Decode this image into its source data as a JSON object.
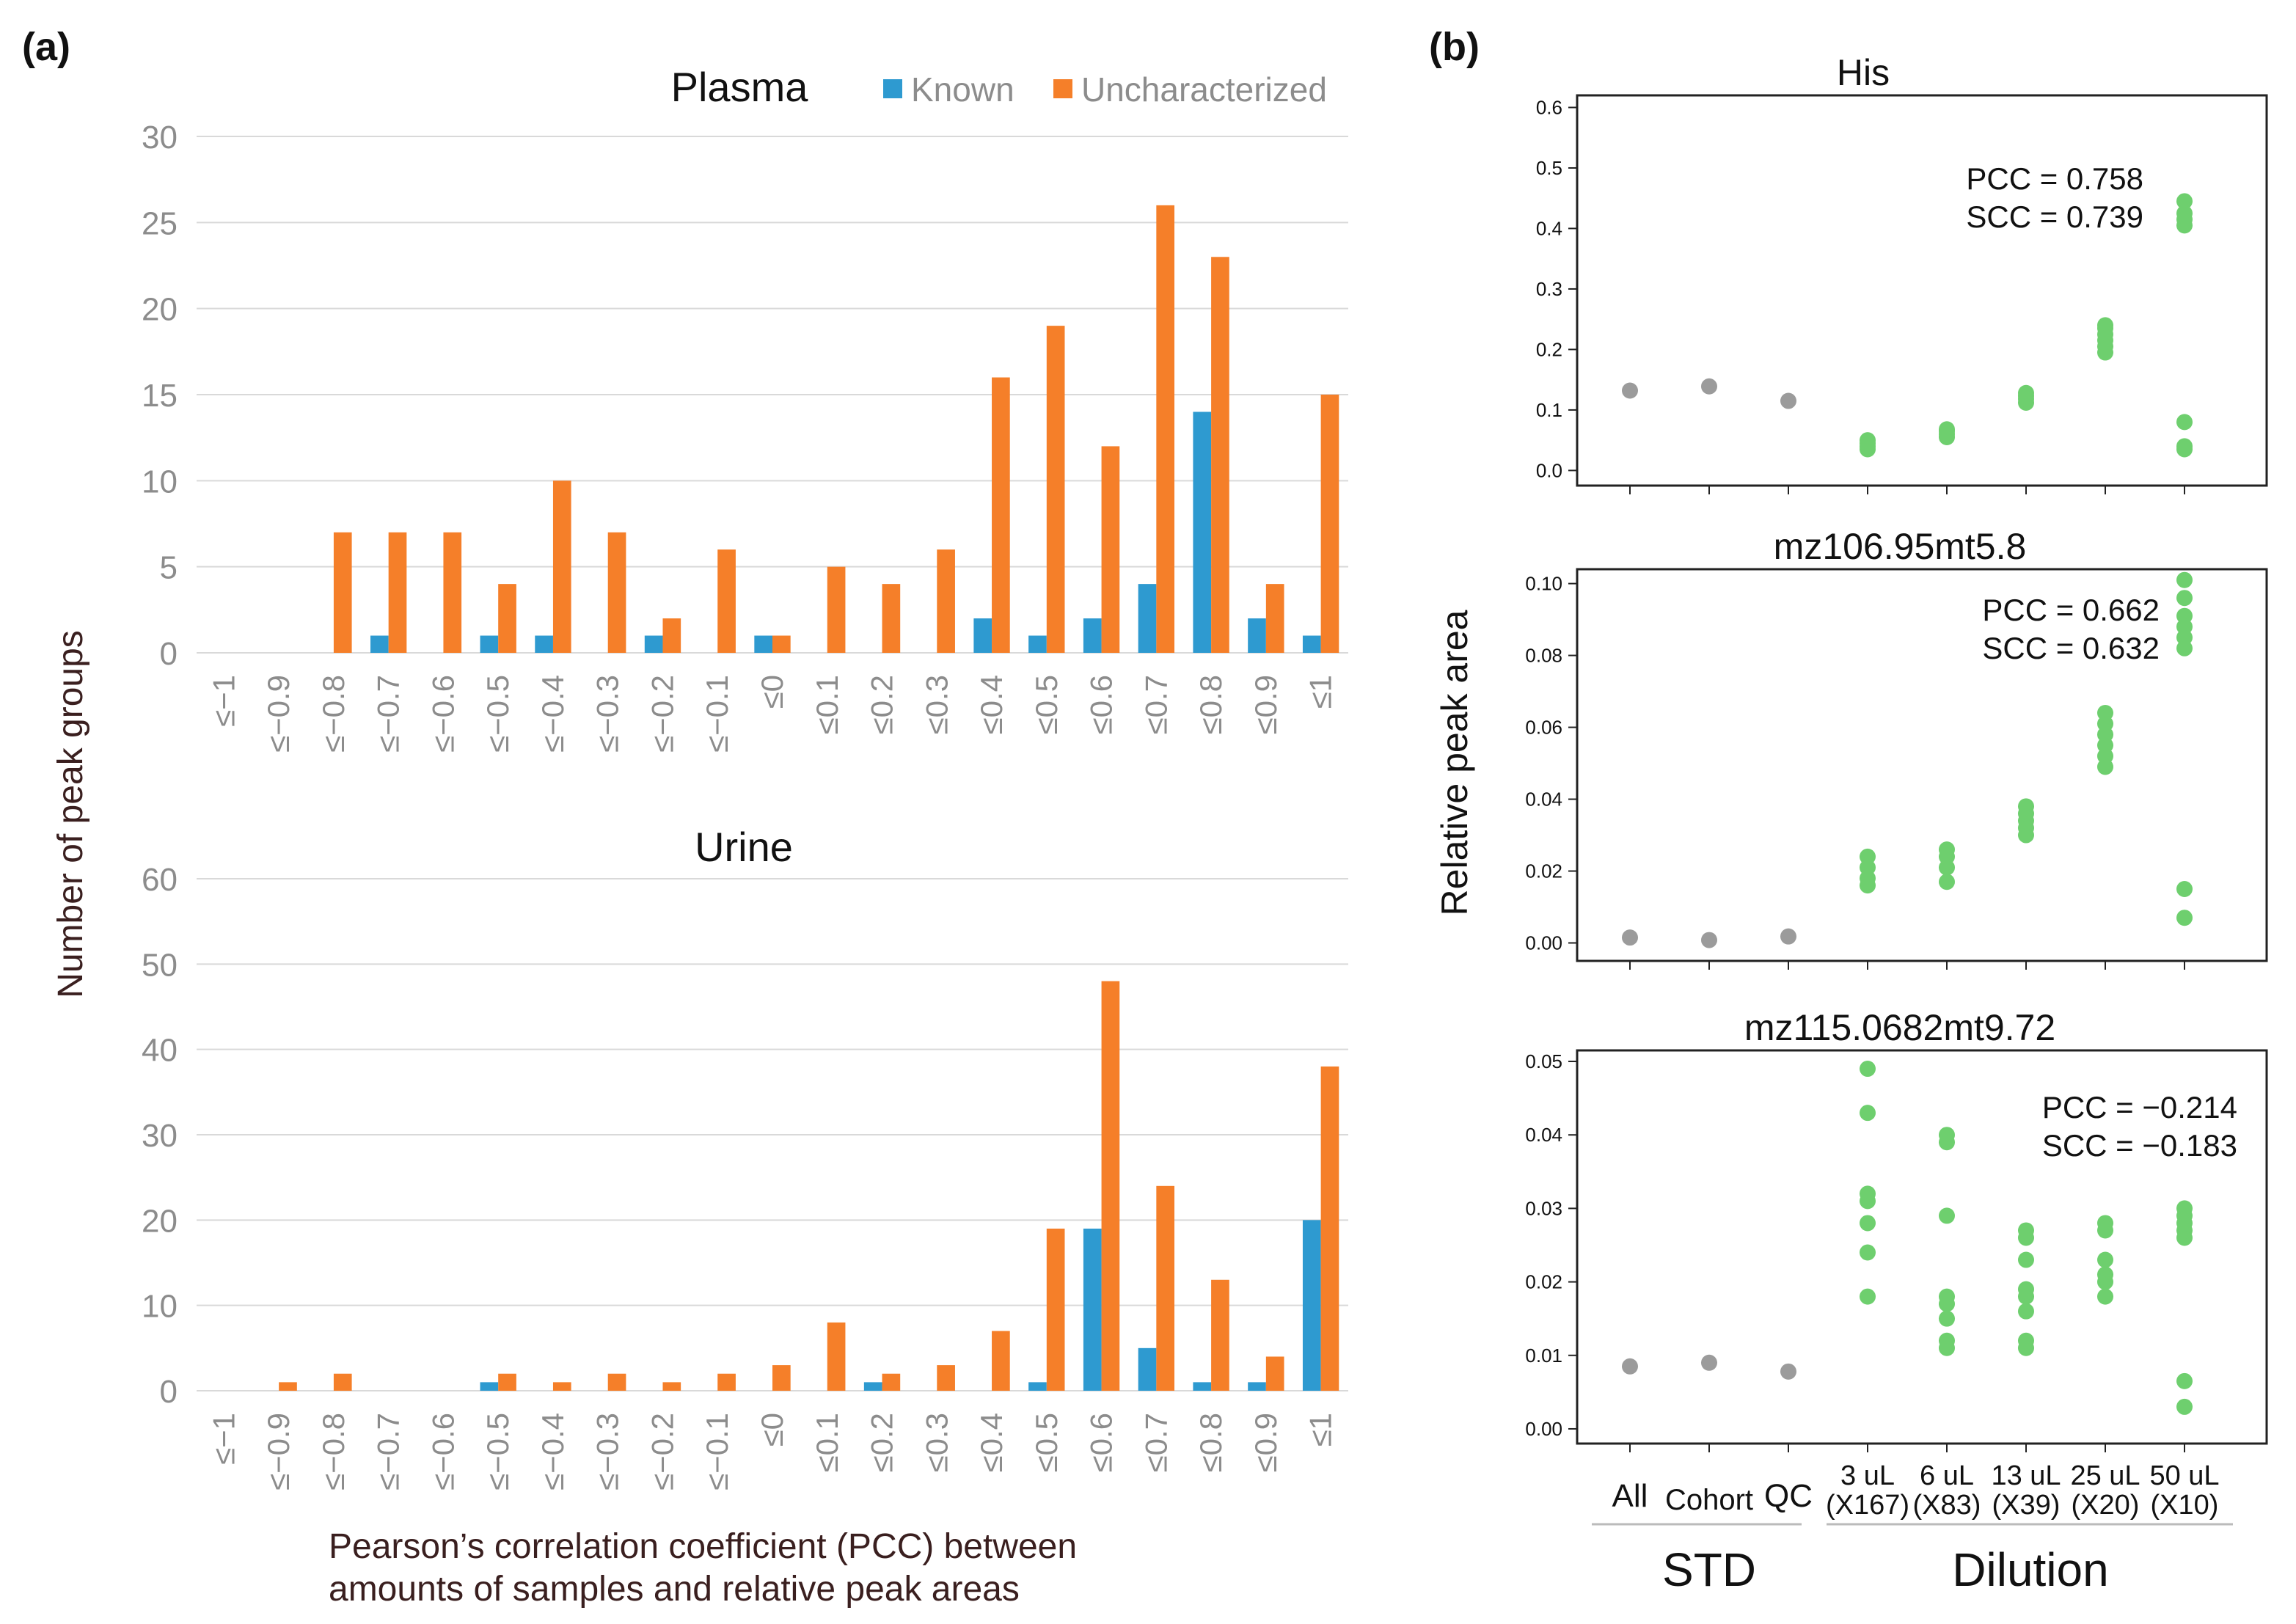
{
  "panel_labels": {
    "a": "(a)",
    "b": "(b)"
  },
  "colors": {
    "known": "#2E9AD0",
    "uncharacterized": "#F57F29",
    "std_points": "#9B9B9B",
    "dilution_points": "#6ECF6E",
    "grid": "#D9D9D9",
    "tick_label_gray": "#8C8C8C"
  },
  "panel_a": {
    "ylabel": "Number of peak groups",
    "xlabel_line1": "Pearson’s correlation coefficient (PCC) between",
    "xlabel_line2": "amounts of samples and relative peak areas"
  },
  "panel_b": {
    "ylabel": "Relative peak area",
    "group_std": "STD",
    "group_dilution": "Dilution",
    "x_labels": [
      {
        "line1": "All",
        "line2": ""
      },
      {
        "line1": "Cohort",
        "line2": ""
      },
      {
        "line1": "QC",
        "line2": ""
      },
      {
        "line1": "3 uL",
        "line2": "(X167)"
      },
      {
        "line1": "6 uL",
        "line2": "(X83)"
      },
      {
        "line1": "13 uL",
        "line2": "(X39)"
      },
      {
        "line1": "25 uL",
        "line2": "(X20)"
      },
      {
        "line1": "50 uL",
        "line2": "(X10)"
      }
    ]
  },
  "chart_data": [
    {
      "id": "plasma",
      "type": "bar",
      "title": "Plasma",
      "legend": [
        "Known",
        "Uncharacterized"
      ],
      "legend_position": "top-right",
      "categories": [
        "≤−1",
        "≤−0.9",
        "≤−0.8",
        "≤−0.7",
        "≤−0.6",
        "≤−0.5",
        "≤−0.4",
        "≤−0.3",
        "≤−0.2",
        "≤−0.1",
        "≤0",
        "≤0.1",
        "≤0.2",
        "≤0.3",
        "≤0.4",
        "≤0.5",
        "≤0.6",
        "≤0.7",
        "≤0.8",
        "≤0.9",
        "≤1"
      ],
      "series": [
        {
          "name": "Known",
          "values": [
            0,
            0,
            0,
            1,
            0,
            1,
            1,
            0,
            1,
            0,
            1,
            0,
            0,
            0,
            2,
            1,
            2,
            4,
            14,
            2,
            1
          ]
        },
        {
          "name": "Uncharacterized",
          "values": [
            0,
            0,
            7,
            7,
            7,
            4,
            10,
            7,
            2,
            6,
            1,
            5,
            4,
            6,
            16,
            19,
            12,
            26,
            23,
            4,
            15
          ]
        }
      ],
      "yticks": [
        0,
        5,
        10,
        15,
        20,
        25,
        30
      ],
      "ylim": [
        0,
        30
      ],
      "grid": true
    },
    {
      "id": "urine",
      "type": "bar",
      "title": "Urine",
      "categories": [
        "≤−1",
        "≤−0.9",
        "≤−0.8",
        "≤−0.7",
        "≤−0.6",
        "≤−0.5",
        "≤−0.4",
        "≤−0.3",
        "≤−0.2",
        "≤−0.1",
        "≤0",
        "≤0.1",
        "≤0.2",
        "≤0.3",
        "≤0.4",
        "≤0.5",
        "≤0.6",
        "≤0.7",
        "≤0.8",
        "≤0.9",
        "≤1"
      ],
      "series": [
        {
          "name": "Known",
          "values": [
            0,
            0,
            0,
            0,
            0,
            1,
            0,
            0,
            0,
            0,
            0,
            0,
            1,
            0,
            0,
            1,
            19,
            5,
            1,
            1,
            20
          ]
        },
        {
          "name": "Uncharacterized",
          "values": [
            0,
            1,
            2,
            0,
            0,
            2,
            1,
            2,
            1,
            2,
            3,
            8,
            2,
            3,
            7,
            19,
            48,
            24,
            13,
            4,
            38
          ]
        }
      ],
      "yticks": [
        0,
        10,
        20,
        30,
        40,
        50,
        60
      ],
      "ylim": [
        0,
        60
      ],
      "grid": true
    },
    {
      "id": "his",
      "type": "scatter",
      "title": "His",
      "annotation_pcc": "PCC = 0.758",
      "annotation_scc": "SCC = 0.739",
      "ylim": [
        -0.025,
        0.62
      ],
      "yticks": [
        0.0,
        0.1,
        0.2,
        0.3,
        0.4,
        0.5,
        0.6
      ],
      "ytick_labels": [
        "0.0",
        "0.1",
        "0.2",
        "0.3",
        "0.4",
        "0.5",
        "0.6"
      ],
      "groups": [
        {
          "x": 0,
          "values": [
            0.132
          ]
        },
        {
          "x": 1,
          "values": [
            0.139
          ]
        },
        {
          "x": 2,
          "values": [
            0.115
          ]
        },
        {
          "x": 3,
          "values": [
            0.035,
            0.04,
            0.045,
            0.05
          ]
        },
        {
          "x": 4,
          "values": [
            0.055,
            0.06,
            0.065,
            0.068
          ]
        },
        {
          "x": 5,
          "values": [
            0.112,
            0.118,
            0.123,
            0.128
          ]
        },
        {
          "x": 6,
          "values": [
            0.195,
            0.205,
            0.215,
            0.225,
            0.235,
            0.24
          ]
        },
        {
          "x": 7,
          "values": [
            0.035,
            0.04,
            0.08,
            0.405,
            0.415,
            0.425,
            0.445
          ]
        }
      ]
    },
    {
      "id": "mz106",
      "type": "scatter",
      "title": "mz106.95mt5.8",
      "annotation_pcc": "PCC = 0.662",
      "annotation_scc": "SCC = 0.632",
      "ylim": [
        -0.005,
        0.104
      ],
      "yticks": [
        0.0,
        0.02,
        0.04,
        0.06,
        0.08,
        0.1
      ],
      "ytick_labels": [
        "0.00",
        "0.02",
        "0.04",
        "0.06",
        "0.08",
        "0.10"
      ],
      "groups": [
        {
          "x": 0,
          "values": [
            0.0015
          ]
        },
        {
          "x": 1,
          "values": [
            0.0008
          ]
        },
        {
          "x": 2,
          "values": [
            0.0018
          ]
        },
        {
          "x": 3,
          "values": [
            0.016,
            0.018,
            0.021,
            0.024
          ]
        },
        {
          "x": 4,
          "values": [
            0.017,
            0.021,
            0.024,
            0.026
          ]
        },
        {
          "x": 5,
          "values": [
            0.03,
            0.032,
            0.034,
            0.036,
            0.038
          ]
        },
        {
          "x": 6,
          "values": [
            0.049,
            0.052,
            0.055,
            0.058,
            0.061,
            0.064
          ]
        },
        {
          "x": 7,
          "values": [
            0.007,
            0.015,
            0.082,
            0.085,
            0.088,
            0.091,
            0.096,
            0.101
          ]
        }
      ]
    },
    {
      "id": "mz115",
      "type": "scatter",
      "title": "mz115.0682mt9.72",
      "annotation_pcc": "PCC = −0.214",
      "annotation_scc": "SCC = −0.183",
      "ylim": [
        -0.002,
        0.0515
      ],
      "yticks": [
        0.0,
        0.01,
        0.02,
        0.03,
        0.04,
        0.05
      ],
      "ytick_labels": [
        "0.00",
        "0.01",
        "0.02",
        "0.03",
        "0.04",
        "0.05"
      ],
      "groups": [
        {
          "x": 0,
          "values": [
            0.0085
          ]
        },
        {
          "x": 1,
          "values": [
            0.009
          ]
        },
        {
          "x": 2,
          "values": [
            0.0078
          ]
        },
        {
          "x": 3,
          "values": [
            0.018,
            0.024,
            0.028,
            0.031,
            0.032,
            0.043,
            0.049
          ]
        },
        {
          "x": 4,
          "values": [
            0.011,
            0.012,
            0.015,
            0.017,
            0.018,
            0.029,
            0.039,
            0.04
          ]
        },
        {
          "x": 5,
          "values": [
            0.011,
            0.012,
            0.016,
            0.018,
            0.019,
            0.023,
            0.026,
            0.027
          ]
        },
        {
          "x": 6,
          "values": [
            0.018,
            0.02,
            0.021,
            0.023,
            0.027,
            0.028
          ]
        },
        {
          "x": 7,
          "values": [
            0.003,
            0.0065,
            0.026,
            0.027,
            0.028,
            0.029,
            0.03
          ]
        }
      ]
    }
  ]
}
